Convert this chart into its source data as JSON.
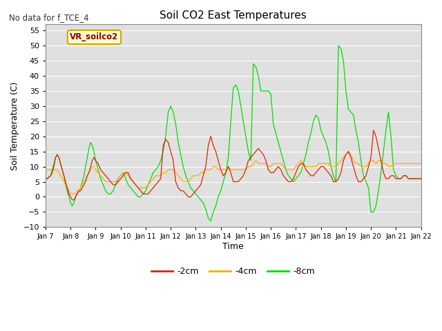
{
  "title": "Soil CO2 East Temperatures",
  "subtitle": "No data for f_TCE_4",
  "xlabel": "Time",
  "ylabel": "Soil Temperature (C)",
  "ylim": [
    -10,
    57
  ],
  "yticks": [
    -10,
    -5,
    0,
    5,
    10,
    15,
    20,
    25,
    30,
    35,
    40,
    45,
    50,
    55
  ],
  "colors": {
    "m2cm": "#dd2200",
    "m4cm": "#ffaa00",
    "m8cm": "#00dd00",
    "background": "#e0e0e0",
    "grid": "#ffffff",
    "legend_box_fill": "#ffffcc",
    "legend_box_edge": "#ccaa00"
  },
  "legend_label": "VR_soilco2",
  "series_labels": [
    "-2cm",
    "-4cm",
    "-8cm"
  ],
  "xtick_labels": [
    "Jan 7",
    "Jan 8",
    "Jan 9",
    "Jan 10",
    "Jan 11",
    "Jan 12",
    "Jan 13",
    "Jan 14",
    "Jan 15",
    "Jan 16",
    "Jan 17",
    "Jan 18",
    "Jan 19",
    "Jan 20",
    "Jan 21",
    "Jan 22"
  ],
  "x": [
    0,
    0.067,
    0.133,
    0.2,
    0.267,
    0.333,
    0.4,
    0.467,
    0.533,
    0.6,
    0.667,
    0.733,
    0.8,
    0.867,
    0.933,
    1.0,
    1.067,
    1.133,
    1.2,
    1.267,
    1.333,
    1.4,
    1.467,
    1.533,
    1.6,
    1.667,
    1.733,
    1.8,
    1.867,
    1.933,
    2.0,
    2.1,
    2.2,
    2.3,
    2.4,
    2.5,
    2.6,
    2.7,
    2.8,
    2.9,
    3.0,
    3.1,
    3.2,
    3.3,
    3.4,
    3.5,
    3.6,
    3.7,
    3.8,
    3.9,
    4.0,
    4.1,
    4.2,
    4.3,
    4.4,
    4.5,
    4.6,
    4.7,
    4.8,
    4.9,
    5.0,
    5.1,
    5.2,
    5.3,
    5.4,
    5.5,
    5.6,
    5.7,
    5.8,
    5.9,
    6.0,
    6.1,
    6.2,
    6.3,
    6.4,
    6.5,
    6.6,
    6.7,
    6.8,
    6.9,
    7.0,
    7.1,
    7.2,
    7.3,
    7.4,
    7.5,
    7.6,
    7.7,
    7.8,
    7.9,
    8.0,
    8.1,
    8.2,
    8.3,
    8.4,
    8.5,
    8.6,
    8.7,
    8.8,
    8.9,
    9.0,
    9.1,
    9.2,
    9.3,
    9.4,
    9.5,
    9.6,
    9.7,
    9.8,
    9.9,
    10.0,
    10.1,
    10.2,
    10.3,
    10.4,
    10.5,
    10.6,
    10.7,
    10.8,
    10.9,
    11.0,
    11.1,
    11.2,
    11.3,
    11.4,
    11.5,
    11.6,
    11.7,
    11.8,
    11.9,
    12.0,
    12.1,
    12.2,
    12.3,
    12.4,
    12.5,
    12.6,
    12.7,
    12.8,
    12.9,
    13.0,
    13.1,
    13.2,
    13.3,
    13.4,
    13.5,
    13.6,
    13.7,
    13.8,
    13.9,
    14.0,
    14.1,
    14.2,
    14.3,
    14.4,
    14.5,
    14.6,
    14.7,
    14.8,
    14.9,
    15.0
  ],
  "y_2cm": [
    6,
    6,
    6.5,
    7,
    8,
    10,
    13,
    14,
    13,
    11,
    9,
    7,
    5,
    3,
    1,
    0,
    -1,
    -1,
    0,
    1,
    2,
    2,
    3,
    4,
    5,
    7,
    8,
    10,
    12,
    13,
    12,
    11,
    9,
    8,
    7,
    6,
    5,
    4,
    4,
    5,
    6,
    7,
    8,
    8,
    6,
    5,
    4,
    3,
    2,
    1,
    1,
    1,
    2,
    3,
    4,
    5,
    6,
    17,
    19,
    18,
    15,
    12,
    5,
    3,
    2,
    2,
    1,
    0,
    0,
    1,
    2,
    3,
    4,
    7,
    10,
    17,
    20,
    17,
    15,
    12,
    9,
    7,
    8,
    10,
    8,
    5,
    5,
    5,
    6,
    7,
    9,
    12,
    13,
    14,
    15,
    16,
    15,
    14,
    12,
    9,
    8,
    8,
    9,
    10,
    9,
    7,
    6,
    5,
    5,
    6,
    8,
    10,
    11,
    11,
    9,
    8,
    7,
    7,
    8,
    9,
    10,
    10,
    9,
    8,
    7,
    5,
    5,
    6,
    8,
    12,
    14,
    15,
    13,
    10,
    7,
    5,
    5,
    6,
    7,
    10,
    13,
    22,
    20,
    16,
    12,
    8,
    6,
    6,
    7,
    7,
    6,
    6,
    6,
    7,
    7,
    6,
    6,
    6,
    6,
    6,
    6
  ],
  "y_4cm": [
    9,
    9,
    9,
    9,
    9,
    9,
    9,
    9,
    8,
    7,
    6,
    5,
    4,
    3,
    2,
    1,
    1,
    1,
    1,
    2,
    2,
    3,
    4,
    5,
    6,
    7,
    8,
    9,
    10,
    10,
    9,
    8,
    7,
    6,
    5,
    5,
    5,
    5,
    5,
    6,
    7,
    8,
    8,
    7,
    6,
    5,
    4,
    3,
    3,
    3,
    3,
    4,
    5,
    6,
    7,
    7,
    7,
    8,
    8,
    9,
    9,
    9,
    8,
    7,
    6,
    5,
    5,
    5,
    6,
    7,
    7,
    7,
    8,
    8,
    9,
    9,
    9,
    10,
    10,
    9,
    9,
    9,
    9,
    10,
    9,
    9,
    9,
    9,
    9,
    9,
    9,
    10,
    10,
    11,
    12,
    11,
    11,
    11,
    11,
    10,
    10,
    11,
    11,
    11,
    11,
    10,
    9,
    9,
    9,
    9,
    10,
    11,
    12,
    11,
    10,
    10,
    10,
    10,
    10,
    11,
    11,
    11,
    11,
    11,
    10,
    10,
    10,
    11,
    12,
    13,
    14,
    15,
    14,
    12,
    11,
    11,
    10,
    10,
    10,
    11,
    12,
    12,
    11,
    12,
    12,
    11,
    11,
    10,
    10,
    11,
    11,
    11,
    11,
    11,
    11,
    11,
    11,
    11,
    11,
    11,
    11
  ],
  "y_8cm": [
    6,
    6,
    6.5,
    7,
    9,
    11,
    13,
    14,
    13,
    11,
    9,
    7,
    4,
    2,
    0,
    -2,
    -3,
    -2,
    0,
    1,
    2,
    3,
    5,
    7,
    10,
    13,
    16,
    18,
    17,
    15,
    12,
    9,
    6,
    4,
    2,
    1,
    1,
    2,
    4,
    6,
    7,
    8,
    6,
    4,
    3,
    2,
    1,
    0,
    0,
    1,
    2,
    4,
    6,
    8,
    9,
    10,
    12,
    15,
    20,
    28,
    30,
    28,
    24,
    18,
    14,
    10,
    7,
    5,
    3,
    2,
    1,
    0,
    -1,
    -2,
    -4,
    -7,
    -8,
    -5,
    -3,
    0,
    2,
    5,
    8,
    13,
    25,
    36,
    37,
    35,
    30,
    25,
    20,
    15,
    12,
    44,
    43,
    40,
    35,
    35,
    35,
    35,
    34,
    24,
    21,
    18,
    15,
    12,
    9,
    7,
    6,
    5,
    6,
    7,
    8,
    11,
    14,
    18,
    21,
    25,
    27,
    26,
    22,
    20,
    18,
    15,
    10,
    7,
    5,
    50,
    49,
    45,
    35,
    29,
    28,
    27,
    22,
    18,
    12,
    7,
    5,
    3,
    -5,
    -5,
    -3,
    2,
    8,
    15,
    22,
    28,
    20,
    9,
    7,
    6,
    6,
    7,
    7,
    6,
    6,
    6,
    6,
    6,
    6
  ]
}
